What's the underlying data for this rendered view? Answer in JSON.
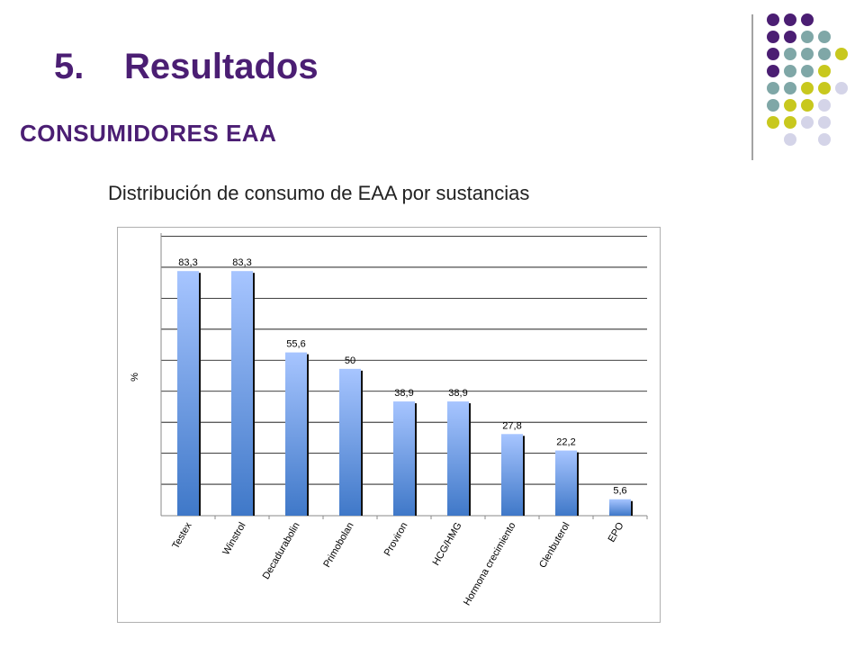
{
  "slide": {
    "section_number": "5.",
    "section_title": "Resultados",
    "subtitle": "CONSUMIDORES EAA",
    "chart_heading": "Distribución de consumo de EAA por sustancias"
  },
  "colors": {
    "title": "#4b1e73",
    "dot_purple": "#4b1e73",
    "dot_teal": "#7fa7a7",
    "dot_yellow": "#c8c81e",
    "dot_lavender": "#d4d4e8",
    "bar_top": "#a7c5ff",
    "bar_bottom": "#3f78c8",
    "bar_shadow": "#111111",
    "gridline": "#000000"
  },
  "chart_data": {
    "type": "bar",
    "title": "",
    "xlabel": "",
    "ylabel": "%",
    "ylim": [
      0,
      95
    ],
    "grid": true,
    "legend": "none",
    "categories": [
      "Testex",
      "Winstrol",
      "Decadurabolin",
      "Primobolan",
      "Proviron",
      "HCG/HMG",
      "Hormona crecimiento",
      "Clenbuterol",
      "EPO"
    ],
    "values": [
      83.3,
      83.3,
      55.6,
      50,
      38.9,
      38.9,
      27.8,
      22.2,
      5.6
    ],
    "data_labels": [
      "83,3",
      "83,3",
      "55,6",
      "50",
      "38,9",
      "38,9",
      "27,8",
      "22,2",
      "5,6"
    ]
  }
}
